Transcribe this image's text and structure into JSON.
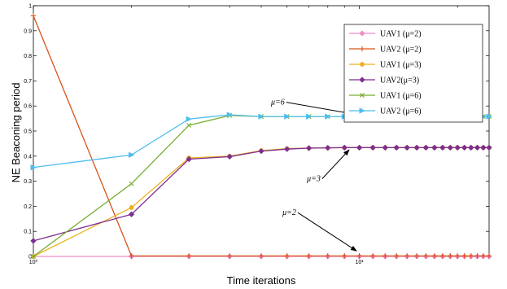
{
  "chart_data": {
    "type": "line",
    "xscale": "log",
    "xlim": [
      1,
      25
    ],
    "ylim": [
      0,
      1
    ],
    "xlabel": "Time iterations",
    "ylabel": "NE Beaconing period",
    "xticks": [
      {
        "value": 1,
        "label": "10⁰"
      },
      {
        "value": 10,
        "label": "10¹"
      }
    ],
    "yticks": [
      {
        "value": 0,
        "label": "0"
      },
      {
        "value": 0.1,
        "label": "0.1"
      },
      {
        "value": 0.2,
        "label": "0.2"
      },
      {
        "value": 0.3,
        "label": "0.3"
      },
      {
        "value": 0.4,
        "label": "0.4"
      },
      {
        "value": 0.5,
        "label": "0.5"
      },
      {
        "value": 0.6,
        "label": "0.6"
      },
      {
        "value": 0.7,
        "label": "0.7"
      },
      {
        "value": 0.8,
        "label": "0.8"
      },
      {
        "value": 0.9,
        "label": "0.9"
      },
      {
        "value": 1,
        "label": "1"
      }
    ],
    "grid": false,
    "legend_position": "top-right",
    "series": [
      {
        "name": "UAV1 (μ=2)",
        "color": "#f28cc8",
        "marker": "diamond",
        "x_start": 1,
        "x_end": 25,
        "y": [
          0
        ]
      },
      {
        "name": "UAV2 (μ=2)",
        "color": "#d95319",
        "marker": "plus",
        "x_start": 1,
        "x_end": 25,
        "y": [
          0.96,
          0.002,
          0.002
        ]
      },
      {
        "name": "UAV1 (μ=3)",
        "color": "#edb120",
        "marker": "circle",
        "x_start": 1,
        "x_end": 25,
        "y": [
          0.0,
          0.195,
          0.393,
          0.4,
          0.422,
          0.43,
          0.432,
          0.433,
          0.434
        ]
      },
      {
        "name": "UAV2(μ=3)",
        "color": "#7e2f8e",
        "marker": "diamond",
        "x_start": 1,
        "x_end": 25,
        "y": [
          0.062,
          0.168,
          0.388,
          0.398,
          0.42,
          0.428,
          0.432,
          0.433,
          0.434
        ]
      },
      {
        "name": "UAV1 (μ=6)",
        "color": "#77ac30",
        "marker": "x",
        "x_start": 1,
        "x_end": 25,
        "y": [
          0.0,
          0.29,
          0.523,
          0.562,
          0.558,
          0.558
        ]
      },
      {
        "name": "UAV2 (μ=6)",
        "color": "#4dbeee",
        "marker": "triangle-right",
        "x_start": 1,
        "x_end": 25,
        "y": [
          0.355,
          0.405,
          0.548,
          0.565,
          0.558,
          0.558
        ]
      }
    ],
    "annotations": [
      {
        "text": "μ=6",
        "x": 5.9,
        "y": 0.605,
        "arrow_to_x": 10.2,
        "arrow_to_y": 0.562
      },
      {
        "text": "μ=3",
        "x": 7.6,
        "y": 0.3,
        "arrow_to_x": 9.3,
        "arrow_to_y": 0.425
      },
      {
        "text": "μ=2",
        "x": 6.4,
        "y": 0.165,
        "arrow_to_x": 9.8,
        "arrow_to_y": 0.022
      }
    ]
  }
}
